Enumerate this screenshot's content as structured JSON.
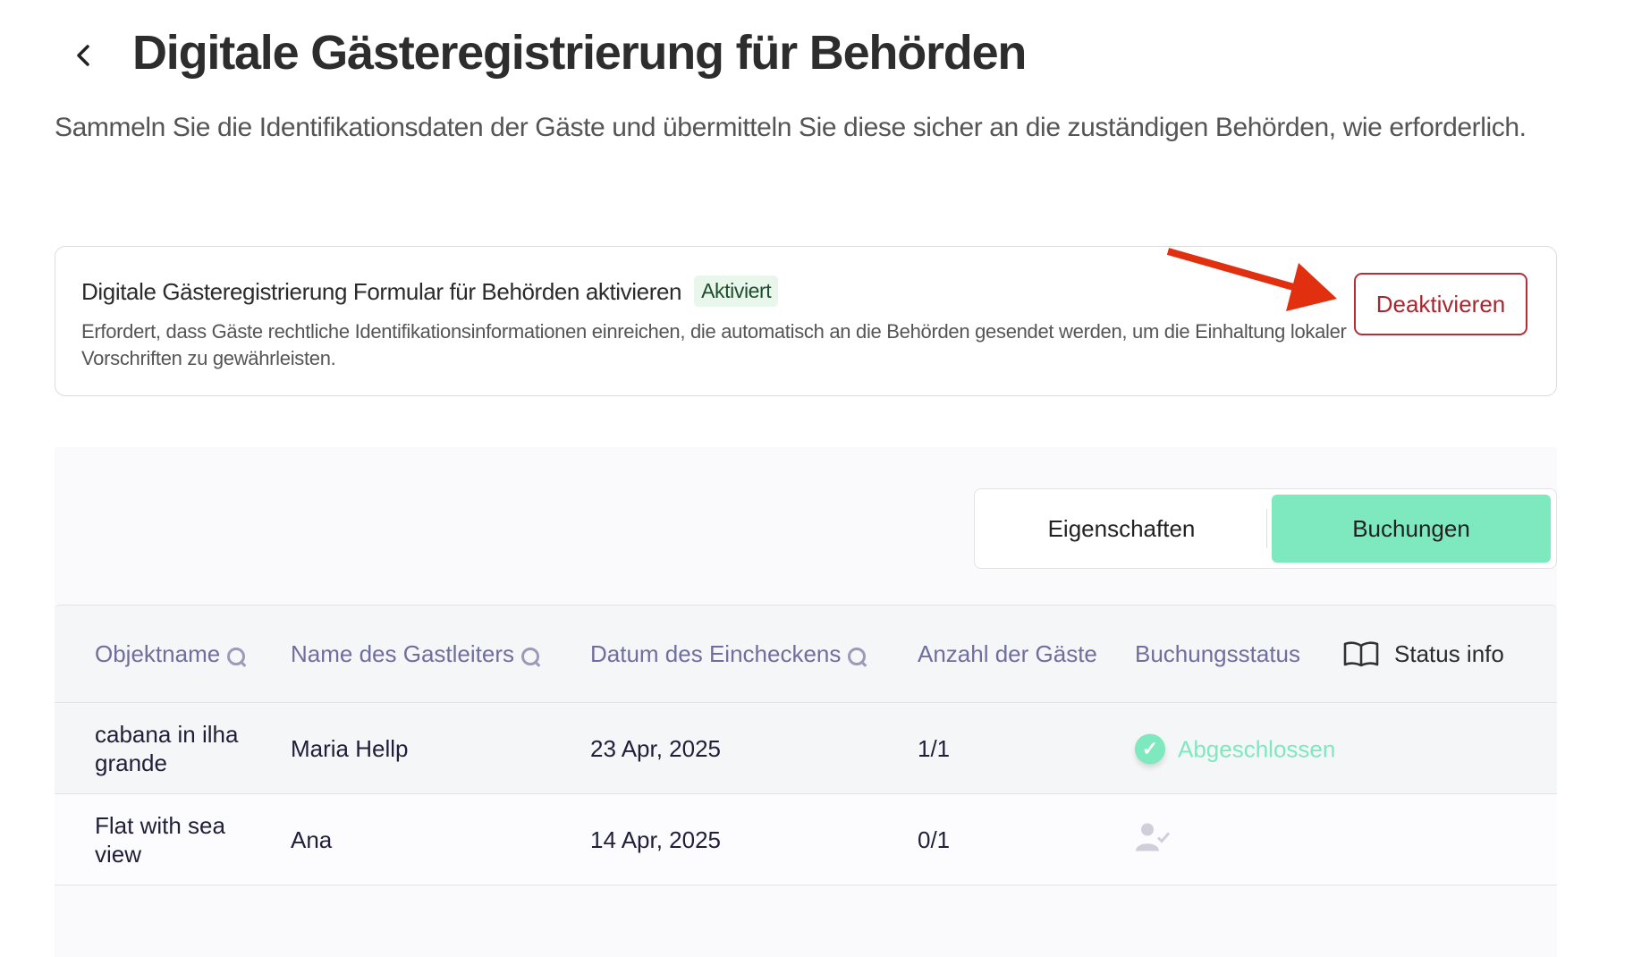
{
  "header": {
    "title": "Digitale Gästeregistrierung für Behörden",
    "subtitle": "Sammeln Sie die Identifikationsdaten der Gäste und übermitteln Sie diese sicher an die zuständigen Behörden, wie erforderlich."
  },
  "card": {
    "title": "Digitale Gästeregistrierung Formular für Behörden aktivieren",
    "badge": "Aktiviert",
    "description": "Erfordert, dass Gäste rechtliche Identifikationsinformationen einreichen, die automatisch an die Behörden gesendet werden, um die Einhaltung lokaler Vorschriften zu gewährleisten.",
    "button": "Deaktivieren"
  },
  "tabs": [
    {
      "label": "Eigenschaften",
      "active": false
    },
    {
      "label": "Buchungen",
      "active": true
    }
  ],
  "table": {
    "headers": [
      "Objektname",
      "Name des Gastleiters",
      "Datum des Eincheckens",
      "Anzahl der Gäste",
      "Buchungsstatus",
      "Status info"
    ],
    "rows": [
      {
        "object": "cabana in ilha grande",
        "guest": "Maria Hellp",
        "checkin": "23 Apr, 2025",
        "count": "1/1",
        "status": "Abgeschlossen",
        "status_icon": "check-circle-icon"
      },
      {
        "object": "Flat with sea view",
        "guest": "Ana",
        "checkin": "14 Apr, 2025",
        "count": "0/1",
        "status_icon": "user-check-icon"
      }
    ]
  },
  "colors": {
    "accent": "#7ee8bf",
    "danger": "#a8262f",
    "arrow": "#e0300f",
    "header_text": "#6f6e9e"
  }
}
